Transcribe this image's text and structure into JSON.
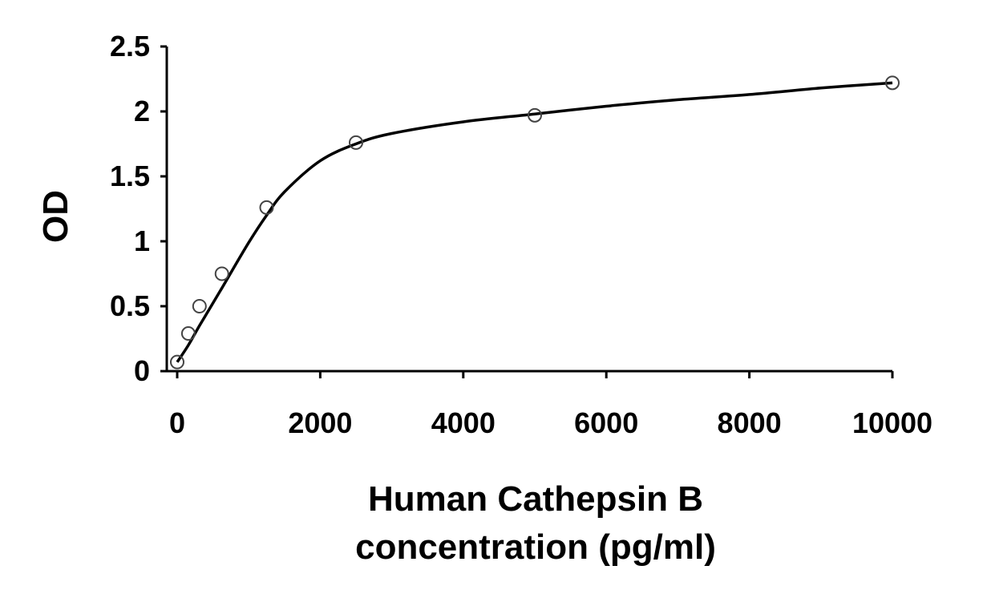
{
  "chart_data": {
    "type": "scatter",
    "xlabel_lines": [
      "Human Cathepsin B",
      "concentration (pg/ml)"
    ],
    "ylabel": "OD",
    "xlim": [
      0,
      10000
    ],
    "ylim": [
      0,
      2.5
    ],
    "x_ticks": [
      0,
      2000,
      4000,
      6000,
      8000,
      10000
    ],
    "x_tick_labels": [
      "0",
      "2000",
      "4000",
      "6000",
      "8000",
      "10000"
    ],
    "y_ticks": [
      0,
      0.5,
      1,
      1.5,
      2,
      2.5
    ],
    "y_tick_labels": [
      "0",
      "0.5",
      "1",
      "1.5",
      "2",
      "2.5"
    ],
    "grid": false,
    "legend": "none",
    "points": [
      {
        "x": 0,
        "y": 0.07
      },
      {
        "x": 156,
        "y": 0.29
      },
      {
        "x": 312,
        "y": 0.5
      },
      {
        "x": 625,
        "y": 0.75
      },
      {
        "x": 1250,
        "y": 1.26
      },
      {
        "x": 2500,
        "y": 1.76
      },
      {
        "x": 5000,
        "y": 1.97
      },
      {
        "x": 10000,
        "y": 2.22
      }
    ],
    "fit_curve": {
      "x": [
        0,
        156,
        312,
        625,
        1000,
        1250,
        1500,
        2000,
        2500,
        3000,
        4000,
        5000,
        6000,
        7000,
        8000,
        9000,
        10000
      ],
      "y": [
        0.07,
        0.2,
        0.35,
        0.64,
        0.99,
        1.2,
        1.38,
        1.62,
        1.75,
        1.83,
        1.92,
        1.98,
        2.04,
        2.09,
        2.13,
        2.18,
        2.22
      ]
    },
    "colors": {
      "marker_stroke": "#444444",
      "curve": "#000000",
      "axis": "#000000"
    }
  }
}
